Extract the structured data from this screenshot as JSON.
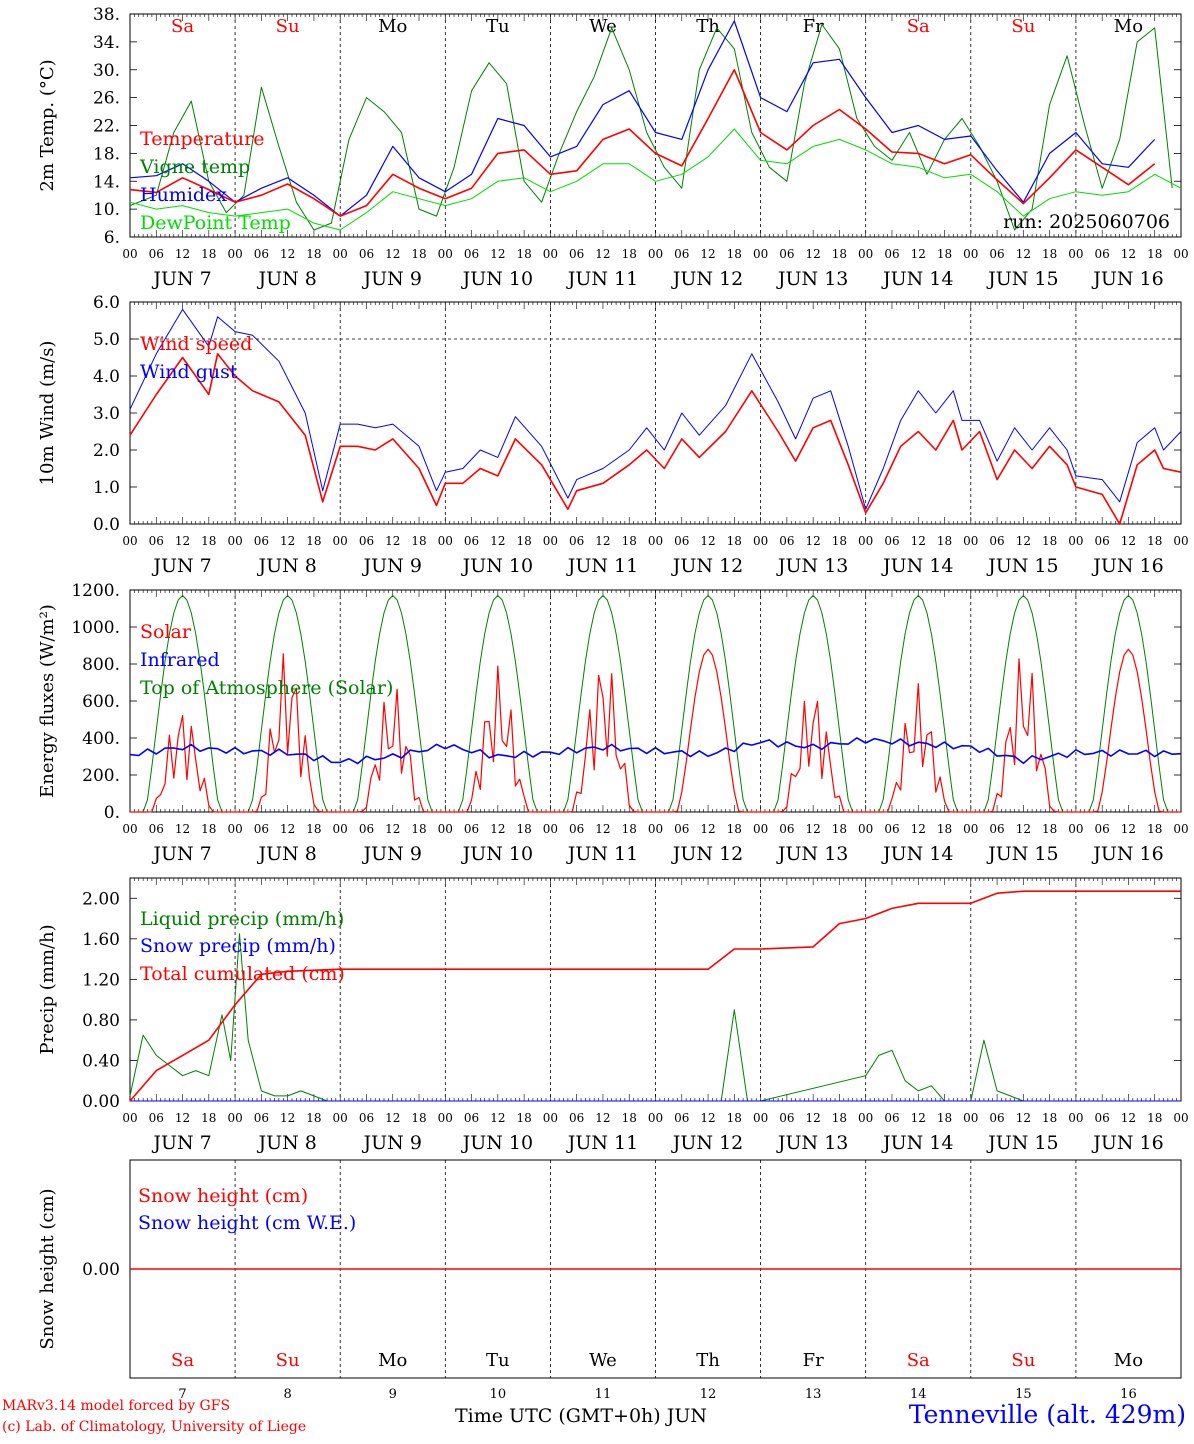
{
  "station": "Tenneville (alt. 429m)",
  "credits": [
    "MARv3.14 model forced by GFS",
    "(c) Lab. of Climatology, University of Liege"
  ],
  "x_axis_title": "Time UTC (GMT+0h) JUN",
  "run_label": "run: 2025060706",
  "hour_ticks": [
    "00",
    "06",
    "12",
    "18"
  ],
  "day_labels": [
    "JUN  7",
    "JUN  8",
    "JUN  9",
    "JUN 10",
    "JUN 11",
    "JUN 12",
    "JUN 13",
    "JUN 14",
    "JUN 15",
    "JUN 16"
  ],
  "bottom_day_numbers": [
    "7",
    "8",
    "9",
    "10",
    "11",
    "12",
    "13",
    "14",
    "15",
    "16"
  ],
  "weekdays": [
    {
      "label": "Sa",
      "color": "#ff0000"
    },
    {
      "label": "Su",
      "color": "#ff0000"
    },
    {
      "label": "Mo",
      "color": "#000000"
    },
    {
      "label": "Tu",
      "color": "#000000"
    },
    {
      "label": "We",
      "color": "#000000"
    },
    {
      "label": "Th",
      "color": "#000000"
    },
    {
      "label": "Fr",
      "color": "#000000"
    },
    {
      "label": "Sa",
      "color": "#ff0000"
    },
    {
      "label": "Su",
      "color": "#ff0000"
    },
    {
      "label": "Mo",
      "color": "#000000"
    }
  ],
  "chart_data": [
    {
      "type": "line",
      "ylabel": "2m Temp. (°C)",
      "ylim": [
        6,
        38
      ],
      "ytick_values": [
        6,
        10,
        14,
        18,
        22,
        26,
        30,
        34,
        38
      ],
      "ytick_labels": [
        "6.",
        "10.",
        "14.",
        "18.",
        "22.",
        "26.",
        "30.",
        "34.",
        "38."
      ],
      "x_unit": "hours since JUN 7 00 UTC",
      "series": [
        {
          "name": "Temperature",
          "color": "#ff0000",
          "width": 1.6,
          "x": [
            0,
            6,
            12,
            18,
            24,
            30,
            36,
            42,
            48,
            54,
            60,
            66,
            72,
            78,
            84,
            90,
            96,
            102,
            108,
            114,
            120,
            126,
            132,
            138,
            144,
            150,
            156,
            162,
            168,
            174,
            180,
            186,
            192,
            198,
            204,
            210,
            216,
            222,
            228,
            234
          ],
          "y": [
            12.8,
            12.4,
            14.5,
            12.8,
            11.0,
            12.0,
            13.6,
            11.5,
            9.0,
            10.5,
            15.0,
            13.0,
            11.5,
            13.0,
            18.0,
            18.5,
            15.0,
            15.5,
            20.0,
            21.5,
            18.0,
            16.2,
            23.0,
            30.0,
            21.0,
            18.5,
            22.0,
            24.3,
            21.5,
            18.2,
            18.0,
            16.5,
            17.8,
            14.2,
            10.8,
            14.5,
            18.5,
            16.0,
            13.5,
            16.5
          ]
        },
        {
          "name": "Humidex",
          "color": "#0000ff",
          "width": 1.2,
          "x": [
            0,
            6,
            12,
            18,
            24,
            30,
            36,
            42,
            48,
            54,
            60,
            66,
            72,
            78,
            84,
            90,
            96,
            102,
            108,
            114,
            120,
            126,
            132,
            138,
            144,
            150,
            156,
            162,
            168,
            174,
            180,
            186,
            192,
            198,
            204,
            210,
            216,
            222,
            228,
            234
          ],
          "y": [
            14.5,
            14.8,
            16.5,
            14.0,
            11.0,
            13.0,
            14.5,
            12.0,
            9.0,
            12.0,
            19.0,
            14.5,
            12.5,
            15.0,
            23.0,
            22.0,
            17.5,
            19.0,
            25.0,
            27.0,
            21.0,
            20.0,
            30.0,
            37.0,
            26.0,
            24.0,
            31.0,
            31.5,
            26.0,
            21.0,
            22.0,
            20.0,
            20.5,
            15.5,
            11.0,
            18.0,
            21.0,
            16.5,
            16.0,
            20.0
          ]
        },
        {
          "name": "Vigne temp",
          "color": "#008000",
          "width": 1.0,
          "x": [
            0,
            6,
            10,
            14,
            18,
            22,
            26,
            30,
            34,
            38,
            42,
            46,
            50,
            54,
            58,
            62,
            66,
            70,
            74,
            78,
            82,
            86,
            90,
            94,
            98,
            102,
            106,
            110,
            114,
            118,
            122,
            126,
            130,
            134,
            138,
            142,
            146,
            150,
            154,
            158,
            162,
            166,
            170,
            174,
            178,
            182,
            186,
            190,
            194,
            198,
            202,
            206,
            210,
            214,
            218,
            222,
            226,
            230,
            234,
            238
          ],
          "y": [
            10.5,
            12.0,
            21.0,
            25.5,
            14.0,
            9.5,
            12.0,
            27.5,
            19.0,
            11.0,
            7.0,
            8.0,
            20.0,
            26.0,
            24.0,
            21.0,
            10.0,
            9.0,
            16.0,
            27.0,
            31.0,
            28.0,
            14.0,
            11.0,
            18.0,
            24.0,
            29.0,
            36.0,
            30.0,
            21.0,
            16.0,
            13.0,
            30.0,
            36.0,
            33.0,
            21.0,
            16.0,
            14.0,
            28.0,
            36.5,
            33.0,
            23.0,
            19.0,
            17.0,
            21.0,
            15.0,
            20.0,
            23.0,
            19.0,
            14.0,
            7.0,
            10.0,
            25.0,
            32.0,
            22.0,
            13.0,
            20.0,
            34.0,
            36.0,
            13.0
          ]
        },
        {
          "name": "DewPoint Temp",
          "color": "#00dd00",
          "width": 1.0,
          "x": [
            0,
            6,
            12,
            18,
            24,
            30,
            36,
            42,
            48,
            54,
            60,
            66,
            72,
            78,
            84,
            90,
            96,
            102,
            108,
            114,
            120,
            126,
            132,
            138,
            144,
            150,
            156,
            162,
            168,
            174,
            180,
            186,
            192,
            198,
            204,
            210,
            216,
            222,
            228,
            234,
            240
          ],
          "y": [
            11.0,
            10.0,
            10.5,
            9.5,
            9.0,
            9.5,
            10.0,
            8.0,
            7.0,
            9.5,
            12.5,
            11.5,
            10.5,
            11.5,
            14.0,
            14.5,
            12.5,
            14.0,
            16.5,
            16.5,
            14.0,
            15.0,
            17.5,
            21.5,
            17.0,
            16.5,
            19.0,
            20.0,
            18.5,
            16.5,
            16.0,
            14.5,
            15.0,
            12.5,
            9.0,
            11.5,
            12.5,
            12.0,
            12.5,
            15.0,
            13.0
          ]
        }
      ]
    },
    {
      "type": "line",
      "ylabel": "10m Wind (m/s)",
      "ylim": [
        0,
        6
      ],
      "ytick_values": [
        0,
        1,
        2,
        3,
        4,
        5,
        6
      ],
      "ytick_labels": [
        "0.0",
        "1.0",
        "2.0",
        "3.0",
        "4.0",
        "5.0",
        "6.0"
      ],
      "reference_line_y": 5,
      "series": [
        {
          "name": "Wind speed",
          "color": "#ff0000",
          "width": 1.6,
          "x": [
            0,
            6,
            12,
            18,
            20,
            24,
            28,
            34,
            40,
            44,
            48,
            52,
            56,
            60,
            66,
            70,
            72,
            76,
            80,
            84,
            88,
            94,
            100,
            102,
            108,
            114,
            118,
            122,
            126,
            130,
            136,
            142,
            148,
            152,
            156,
            160,
            164,
            168,
            172,
            176,
            180,
            184,
            188,
            190,
            194,
            198,
            202,
            206,
            210,
            214,
            216,
            222,
            226,
            230,
            234,
            236,
            240
          ],
          "y": [
            2.4,
            3.5,
            4.5,
            3.5,
            4.6,
            4.0,
            3.6,
            3.3,
            2.4,
            0.6,
            2.1,
            2.1,
            2.0,
            2.3,
            1.5,
            0.5,
            1.1,
            1.1,
            1.5,
            1.3,
            2.3,
            1.6,
            0.4,
            0.9,
            1.1,
            1.6,
            2.0,
            1.5,
            2.3,
            1.8,
            2.5,
            3.6,
            2.5,
            1.7,
            2.6,
            2.8,
            1.6,
            0.3,
            1.1,
            2.1,
            2.5,
            2.0,
            2.8,
            2.0,
            2.5,
            1.2,
            2.0,
            1.5,
            2.1,
            1.6,
            1.0,
            0.8,
            0.0,
            1.6,
            2.0,
            1.5,
            1.4
          ]
        },
        {
          "name": "Wind gust",
          "color": "#0000ff",
          "width": 1.0,
          "x": [
            0,
            6,
            12,
            18,
            20,
            24,
            28,
            34,
            40,
            44,
            48,
            52,
            56,
            60,
            66,
            70,
            72,
            76,
            80,
            84,
            88,
            94,
            100,
            102,
            108,
            114,
            118,
            122,
            126,
            130,
            136,
            142,
            148,
            152,
            156,
            160,
            164,
            168,
            172,
            176,
            180,
            184,
            188,
            190,
            194,
            198,
            202,
            206,
            210,
            214,
            216,
            222,
            226,
            230,
            234,
            236,
            240
          ],
          "y": [
            3.1,
            4.6,
            5.8,
            4.8,
            5.6,
            5.2,
            5.1,
            4.4,
            3.0,
            0.9,
            2.7,
            2.7,
            2.6,
            2.7,
            2.1,
            0.9,
            1.4,
            1.5,
            2.0,
            1.8,
            2.9,
            2.1,
            0.7,
            1.2,
            1.5,
            2.0,
            2.6,
            2.0,
            3.0,
            2.4,
            3.2,
            4.6,
            3.3,
            2.3,
            3.4,
            3.6,
            2.1,
            0.4,
            1.5,
            2.8,
            3.6,
            3.0,
            3.6,
            2.8,
            2.8,
            1.7,
            2.6,
            2.0,
            2.6,
            2.0,
            1.3,
            1.2,
            0.6,
            2.2,
            2.6,
            2.0,
            2.5
          ]
        }
      ]
    },
    {
      "type": "line",
      "ylabel": "Energy fluxes (W/m²)",
      "ylim": [
        0,
        1200
      ],
      "ytick_values": [
        0,
        200,
        400,
        600,
        800,
        1000,
        1200
      ],
      "ytick_labels": [
        "0.",
        "200.",
        "400.",
        "600.",
        "800.",
        "1000.",
        "1200."
      ],
      "daily_toa_peak": 1170,
      "daily_solar_peak": [
        600,
        900,
        700,
        800,
        880,
        880,
        700,
        700,
        880,
        880
      ],
      "series": [
        {
          "name": "Solar",
          "color": "#ff0000",
          "width": 1.2
        },
        {
          "name": "Infrared",
          "color": "#0000ff",
          "width": 1.6,
          "x": [
            0,
            12,
            24,
            36,
            48,
            60,
            72,
            84,
            96,
            108,
            120,
            132,
            144,
            156,
            168,
            180,
            192,
            204,
            216,
            228,
            240
          ],
          "y": [
            310,
            350,
            330,
            320,
            270,
            300,
            360,
            300,
            320,
            350,
            330,
            310,
            380,
            350,
            390,
            370,
            350,
            280,
            320,
            320,
            315
          ]
        },
        {
          "name": "Top of Atmosphere (Solar)",
          "color": "#008000",
          "width": 1.0
        }
      ]
    },
    {
      "type": "line",
      "ylabel": "Precip (mm/h)",
      "ylim": [
        0,
        2.2
      ],
      "ytick_values": [
        0,
        0.4,
        0.8,
        1.2,
        1.6,
        2.0
      ],
      "ytick_labels": [
        "0.00",
        "0.40",
        "0.80",
        "1.20",
        "1.60",
        "2.00"
      ],
      "series": [
        {
          "name": "Liquid precip (mm/h)",
          "color": "#008000",
          "width": 1.0,
          "x": [
            0,
            3,
            6,
            9,
            12,
            15,
            18,
            21,
            23,
            25,
            27,
            30,
            33,
            36,
            39,
            42,
            45,
            48,
            135,
            138,
            141,
            144,
            168,
            171,
            174,
            177,
            180,
            183,
            186,
            189,
            192,
            195,
            198,
            201,
            204
          ],
          "y": [
            0.05,
            0.65,
            0.45,
            0.35,
            0.25,
            0.3,
            0.25,
            0.85,
            0.4,
            1.65,
            0.6,
            0.1,
            0.05,
            0.05,
            0.1,
            0.05,
            0.0,
            0.0,
            0.0,
            0.9,
            0.0,
            0.0,
            0.25,
            0.45,
            0.5,
            0.2,
            0.1,
            0.15,
            0.0,
            0.0,
            0.0,
            0.6,
            0.1,
            0.05,
            0.0
          ]
        },
        {
          "name": "Snow precip (mm/h)",
          "color": "#0000ff",
          "width": 1.0,
          "x": [
            0,
            240
          ],
          "y": [
            0,
            0
          ]
        },
        {
          "name": "Total cumulated (cm)",
          "color": "#ff0000",
          "width": 1.6,
          "x": [
            0,
            6,
            12,
            18,
            24,
            30,
            36,
            48,
            72,
            96,
            120,
            132,
            138,
            144,
            156,
            162,
            168,
            174,
            180,
            186,
            192,
            198,
            204,
            216,
            240
          ],
          "y": [
            0.0,
            0.3,
            0.45,
            0.6,
            0.95,
            1.25,
            1.28,
            1.3,
            1.3,
            1.3,
            1.3,
            1.3,
            1.5,
            1.5,
            1.52,
            1.75,
            1.8,
            1.9,
            1.95,
            1.95,
            1.95,
            2.05,
            2.07,
            2.07,
            2.07
          ]
        }
      ]
    },
    {
      "type": "line",
      "ylabel": "Snow height (cm)",
      "ylim": [
        -1,
        1
      ],
      "ytick_values": [
        0
      ],
      "ytick_labels": [
        "0.00"
      ],
      "series": [
        {
          "name": "Snow height (cm)",
          "color": "#ff0000",
          "width": 1.4,
          "x": [
            0,
            240
          ],
          "y": [
            0,
            0
          ]
        },
        {
          "name": "Snow height (cm W.E.)",
          "color": "#0000ff",
          "width": 1.0
        }
      ]
    }
  ]
}
